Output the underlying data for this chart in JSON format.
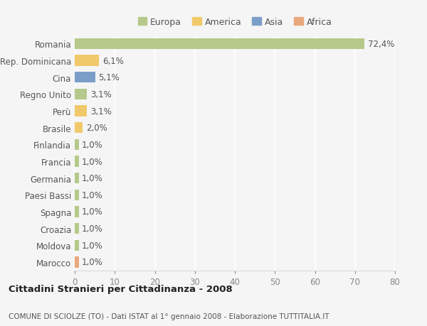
{
  "categories": [
    "Marocco",
    "Moldova",
    "Croazia",
    "Spagna",
    "Paesi Bassi",
    "Germania",
    "Francia",
    "Finlandia",
    "Brasile",
    "Perù",
    "Regno Unito",
    "Cina",
    "Rep. Dominicana",
    "Romania"
  ],
  "values": [
    1.0,
    1.0,
    1.0,
    1.0,
    1.0,
    1.0,
    1.0,
    1.0,
    2.0,
    3.1,
    3.1,
    5.1,
    6.1,
    72.4
  ],
  "labels": [
    "1,0%",
    "1,0%",
    "1,0%",
    "1,0%",
    "1,0%",
    "1,0%",
    "1,0%",
    "1,0%",
    "2,0%",
    "3,1%",
    "3,1%",
    "5,1%",
    "6,1%",
    "72,4%"
  ],
  "colors": [
    "#e8a87c",
    "#b5c98a",
    "#b5c98a",
    "#b5c98a",
    "#b5c98a",
    "#b5c98a",
    "#b5c98a",
    "#b5c98a",
    "#f0c96a",
    "#f0c96a",
    "#b5c98a",
    "#7a9ec8",
    "#f0c96a",
    "#b5c98a"
  ],
  "legend_labels": [
    "Europa",
    "America",
    "Asia",
    "Africa"
  ],
  "legend_colors": [
    "#b5c98a",
    "#f0c96a",
    "#7a9ec8",
    "#e8a87c"
  ],
  "xlim": [
    0,
    80
  ],
  "xticks": [
    0,
    10,
    20,
    30,
    40,
    50,
    60,
    70,
    80
  ],
  "title": "Cittadini Stranieri per Cittadinanza - 2008",
  "subtitle": "COMUNE DI SCIOLZE (TO) - Dati ISTAT al 1° gennaio 2008 - Elaborazione TUTTITALIA.IT",
  "bg_color": "#f5f5f5",
  "bar_height": 0.65,
  "grid_color": "#ffffff",
  "label_fontsize": 8.5,
  "tick_fontsize": 8.5,
  "title_fontsize": 9.5,
  "subtitle_fontsize": 7.5
}
